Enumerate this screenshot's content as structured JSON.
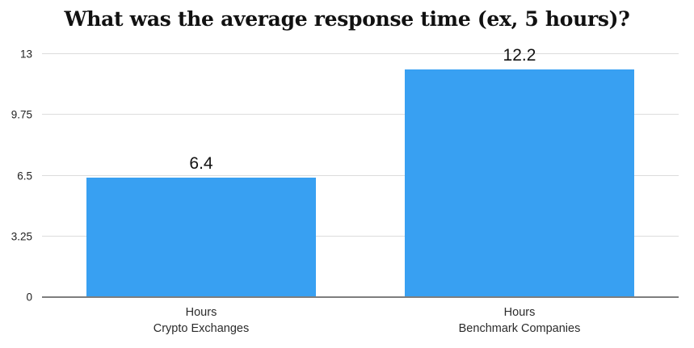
{
  "chart_data": {
    "type": "bar",
    "title": "What was the average response time (ex, 5 hours)?",
    "categories": [
      "Hours\nCrypto Exchanges",
      "Hours\nBenchmark Companies"
    ],
    "values": [
      6.4,
      12.2
    ],
    "data_labels": [
      "6.4",
      "12.2"
    ],
    "y_ticks": [
      0,
      3.25,
      6.5,
      9.75,
      13
    ],
    "y_tick_labels": [
      "0",
      "3.25",
      "6.5",
      "9.75",
      "13"
    ],
    "ylim": [
      0,
      13
    ],
    "xlabel": "",
    "ylabel": "",
    "grid": true,
    "legend": false,
    "bar_width_pct": 36,
    "colors": {
      "bar": "#38A0F2",
      "gridline": "#DCDCDC",
      "axis_line": "#7E7E7E",
      "title_text": "#111111",
      "label_text": "#222222",
      "background": "#FFFFFF"
    }
  }
}
